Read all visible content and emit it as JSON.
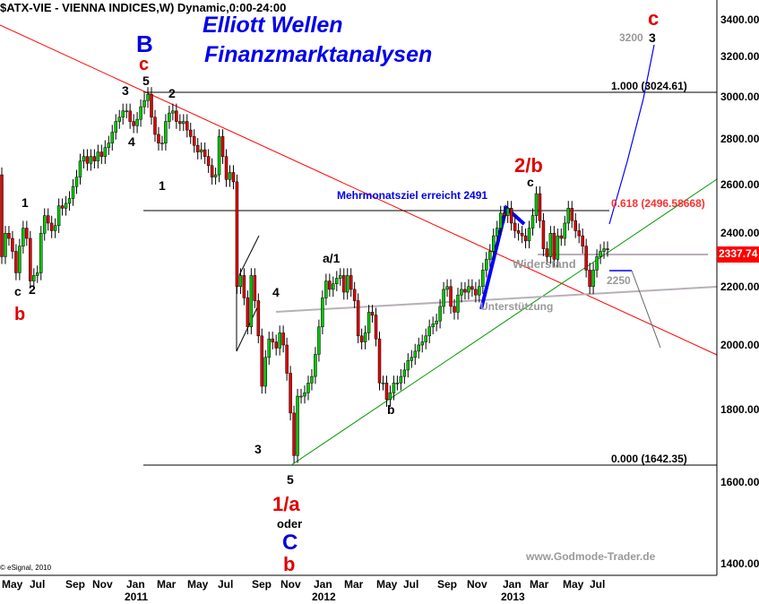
{
  "header": {
    "symbol_title": "$ATX-VIE - VIENNA INDICES,W) Dynamic,0:00-24:00",
    "headline_1": "Elliott Wellen",
    "headline_2": "Finanzmarktanalysen",
    "watermark": "www.Godmode-Trader.de",
    "copyright": "© eSignal, 2010"
  },
  "colors": {
    "up": "#00c800",
    "down": "#e00000",
    "trend_red": "#ff0000",
    "trend_green": "#009900",
    "projection_blue": "#0000ff",
    "support_grey": "#b8b0b8"
  },
  "chart_data": {
    "type": "candlestick",
    "scale": "log",
    "ylim": [
      1400,
      3400
    ],
    "y_ticks": [
      "3400.00",
      "3200.00",
      "3000.00",
      "2800.00",
      "2600.00",
      "2400.00",
      "2200.00",
      "2000.00",
      "1800.00",
      "1600.00",
      "1400.00"
    ],
    "x_ticks": [
      "May",
      "Jul",
      "Sep",
      "Nov",
      "Jan",
      "Mar",
      "May",
      "Jul",
      "Sep",
      "Nov",
      "Jan",
      "Mar",
      "May",
      "Jul",
      "Sep",
      "Nov",
      "Jan",
      "Mar",
      "May",
      "Jul"
    ],
    "x_years": [
      "2011",
      "2012",
      "2013"
    ],
    "period": "weekly",
    "first_open": 2640,
    "closes": [
      2310,
      2400,
      2380,
      2330,
      2250,
      2350,
      2420,
      2380,
      2220,
      2240,
      2250,
      2400,
      2470,
      2440,
      2410,
      2430,
      2510,
      2500,
      2520,
      2540,
      2590,
      2630,
      2700,
      2720,
      2690,
      2720,
      2700,
      2740,
      2720,
      2760,
      2780,
      2830,
      2880,
      2900,
      2930,
      2930,
      2880,
      2860,
      2890,
      2950,
      2980,
      3010,
      2900,
      2820,
      2780,
      2780,
      2880,
      2920,
      2930,
      2880,
      2870,
      2880,
      2840,
      2810,
      2770,
      2740,
      2750,
      2720,
      2680,
      2630,
      2640,
      2810,
      2720,
      2620,
      2650,
      2610,
      2200,
      2240,
      2160,
      2060,
      2240,
      2150,
      2030,
      1870,
      1960,
      2020,
      2010,
      1990,
      2040,
      2000,
      1910,
      1790,
      1670,
      1840,
      1840,
      1850,
      1880,
      1900,
      1970,
      2060,
      2160,
      2220,
      2190,
      2210,
      2230,
      2240,
      2180,
      2240,
      2190,
      2150,
      2030,
      2010,
      2040,
      2110,
      2100,
      2020,
      1880,
      1880,
      1830,
      1850,
      1880,
      1880,
      1900,
      1920,
      1950,
      1960,
      1980,
      2000,
      2010,
      2030,
      2060,
      2070,
      2080,
      2130,
      2190,
      2200,
      2130,
      2110,
      2170,
      2190,
      2180,
      2200,
      2190,
      2170,
      2200,
      2260,
      2300,
      2330,
      2390,
      2420,
      2480,
      2470,
      2500,
      2440,
      2410,
      2400,
      2390,
      2370,
      2420,
      2470,
      2560,
      2450,
      2340,
      2310,
      2400,
      2300,
      2390,
      2380,
      2440,
      2500,
      2450,
      2410,
      2390,
      2350,
      2260,
      2200,
      2260,
      2310,
      2330,
      2340,
      2337.74
    ],
    "last_price": "2337.74",
    "fib_levels": [
      {
        "label": "1.000 (3024.61)",
        "value": 3024.61
      },
      {
        "label": "0.618 (2496.58668)",
        "value": 2496.58668
      },
      {
        "label": "0.000 (1642.35)",
        "value": 1642.35
      }
    ]
  },
  "annotations": {
    "B": "B",
    "c_top": "c",
    "w5_top": "5",
    "w3_top": "3",
    "w2_top": "2",
    "w4_top": "4",
    "w1_top": "1",
    "w1_left": "1",
    "c_left": "c",
    "w2_left": "2",
    "b_left": "b",
    "w4_mid": "4",
    "w3_mid": "3",
    "w5_low": "5",
    "one_a": "1/a",
    "oder": "oder",
    "C": "C",
    "b_bottom": "b",
    "a1": "a/1",
    "b_mid": "b",
    "two_b": "2/b",
    "c_right": "c",
    "target_note": "Mehrmonatsziel erreicht 2491",
    "resistance": "Widerstand",
    "support": "Unterstützung",
    "level_2250": "2250",
    "c_target": "c",
    "level_3200": "3200",
    "w3_target": "3"
  }
}
